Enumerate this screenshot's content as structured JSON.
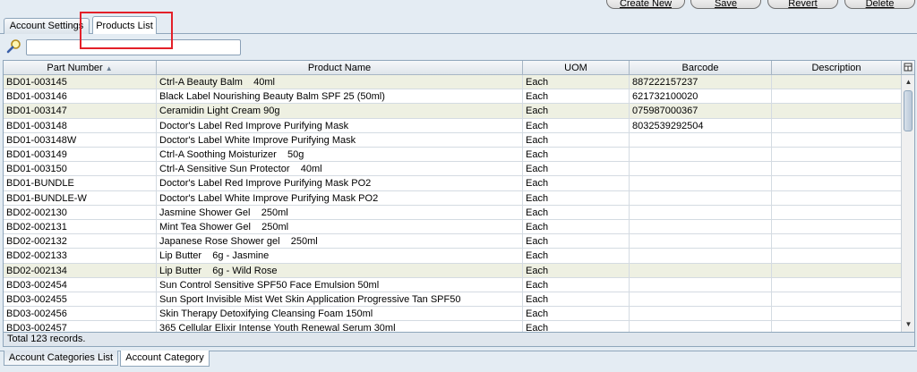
{
  "toolbar": {
    "buttons": [
      {
        "label": "Create New"
      },
      {
        "label": "Save"
      },
      {
        "label": "Revert"
      },
      {
        "label": "Delete"
      }
    ]
  },
  "tabs": [
    {
      "label": "Account Settings"
    },
    {
      "label": "Products List"
    }
  ],
  "search": {
    "value": "",
    "placeholder": ""
  },
  "grid": {
    "columns": [
      "Part Number",
      "Product Name",
      "UOM",
      "Barcode",
      "Description"
    ],
    "rows": [
      [
        "BD01-003145",
        "Ctrl-A Beauty Balm    40ml",
        "Each",
        "887222157237",
        ""
      ],
      [
        "BD01-003146",
        "Black Label Nourishing Beauty Balm SPF 25 (50ml)",
        "Each",
        "621732100020",
        ""
      ],
      [
        "BD01-003147",
        "Ceramidin Light Cream 90g",
        "Each",
        "075987000367",
        ""
      ],
      [
        "BD01-003148",
        "Doctor's Label Red Improve Purifying Mask",
        "Each",
        "8032539292504",
        ""
      ],
      [
        "BD01-003148W",
        "Doctor's Label White Improve Purifying Mask",
        "Each",
        "",
        ""
      ],
      [
        "BD01-003149",
        "Ctrl-A Soothing Moisturizer    50g",
        "Each",
        "",
        ""
      ],
      [
        "BD01-003150",
        "Ctrl-A Sensitive Sun Protector    40ml",
        "Each",
        "",
        ""
      ],
      [
        "BD01-BUNDLE",
        "Doctor's Label Red Improve Purifying Mask PO2",
        "Each",
        "",
        ""
      ],
      [
        "BD01-BUNDLE-W",
        "Doctor's Label White Improve Purifying Mask PO2",
        "Each",
        "",
        ""
      ],
      [
        "BD02-002130",
        "Jasmine Shower Gel    250ml",
        "Each",
        "",
        ""
      ],
      [
        "BD02-002131",
        "Mint Tea Shower Gel    250ml",
        "Each",
        "",
        ""
      ],
      [
        "BD02-002132",
        "Japanese Rose Shower gel    250ml",
        "Each",
        "",
        ""
      ],
      [
        "BD02-002133",
        "Lip Butter    6g - Jasmine",
        "Each",
        "",
        ""
      ],
      [
        "BD02-002134",
        "Lip Butter    6g - Wild Rose",
        "Each",
        "",
        ""
      ],
      [
        "BD03-002454",
        "Sun Control Sensitive SPF50 Face Emulsion 50ml",
        "Each",
        "",
        ""
      ],
      [
        "BD03-002455",
        "Sun Sport Invisible Mist Wet Skin Application Progressive Tan SPF50",
        "Each",
        "",
        ""
      ],
      [
        "BD03-002456",
        "Skin Therapy Detoxifying Cleansing Foam 150ml",
        "Each",
        "",
        ""
      ],
      [
        "BD03-002457",
        "365 Cellular Elixir Intense Youth Renewal Serum 30ml",
        "Each",
        "",
        ""
      ]
    ]
  },
  "status": {
    "text": "Total 123 records."
  },
  "bottom_tabs": [
    {
      "label": "Account Categories List"
    },
    {
      "label": "Account Category"
    }
  ],
  "colors": {
    "highlight": "#e32029",
    "alt_row": "#eef0e2"
  }
}
